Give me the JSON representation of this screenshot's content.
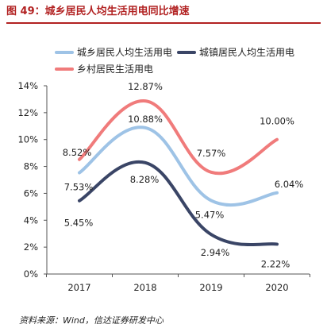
{
  "figure": {
    "title": "图 49：城乡居民人均生活用电同比增速",
    "source": "资料来源：Wind，信达证券研发中心"
  },
  "colors": {
    "title_red": "#b22222",
    "series_urban_rural": "#9ec3e6",
    "series_urban": "#3a4566",
    "series_rural": "#f07b7b"
  },
  "chart_data": {
    "type": "line",
    "categories": [
      "2017",
      "2018",
      "2019",
      "2020"
    ],
    "series": [
      {
        "name": "城乡居民人均生活用电",
        "values": [
          7.53,
          10.88,
          5.47,
          6.04
        ],
        "labels": [
          "7.53%",
          "10.88%",
          "5.47%",
          "6.04%"
        ]
      },
      {
        "name": "城镇居民人均生活用电",
        "values": [
          5.45,
          8.28,
          2.94,
          2.22
        ],
        "labels": [
          "5.45%",
          "8.28%",
          "2.94%",
          "2.22%"
        ]
      },
      {
        "name": "乡村居民生活用电",
        "values": [
          8.52,
          12.87,
          7.57,
          10.0
        ],
        "labels": [
          "8.52%",
          "12.87%",
          "7.57%",
          "10.00%"
        ]
      }
    ],
    "ylim": [
      0,
      14
    ],
    "yticks": [
      0,
      2,
      4,
      6,
      8,
      10,
      12,
      14
    ],
    "ytick_labels": [
      "0%",
      "2%",
      "4%",
      "6%",
      "8%",
      "10%",
      "12%",
      "14%"
    ],
    "smooth": true,
    "grid": false,
    "legend_position": "top"
  }
}
